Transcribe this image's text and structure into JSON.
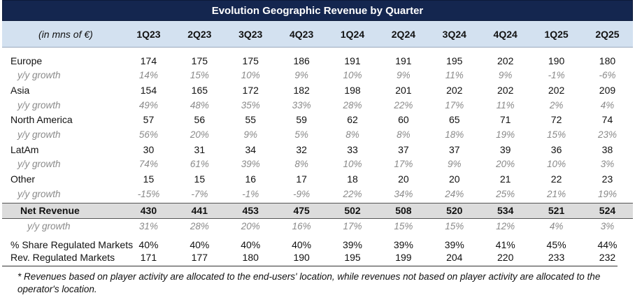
{
  "title": "Evolution Geographic Revenue by Quarter",
  "unit_label": "(in mns of €)",
  "quarters": [
    "1Q23",
    "2Q23",
    "3Q23",
    "4Q23",
    "1Q24",
    "2Q24",
    "3Q24",
    "4Q24",
    "1Q25",
    "2Q25"
  ],
  "regions": [
    {
      "name": "Europe",
      "values": [
        "174",
        "175",
        "175",
        "186",
        "191",
        "191",
        "195",
        "202",
        "190",
        "180"
      ],
      "growth_label": "y/y growth",
      "growth": [
        "14%",
        "15%",
        "10%",
        "9%",
        "10%",
        "9%",
        "11%",
        "9%",
        "-1%",
        "-6%"
      ]
    },
    {
      "name": "Asia",
      "values": [
        "154",
        "165",
        "172",
        "182",
        "198",
        "201",
        "202",
        "202",
        "202",
        "209"
      ],
      "growth_label": "y/y growth",
      "growth": [
        "49%",
        "48%",
        "35%",
        "33%",
        "28%",
        "22%",
        "17%",
        "11%",
        "2%",
        "4%"
      ]
    },
    {
      "name": "North America",
      "values": [
        "57",
        "56",
        "55",
        "59",
        "62",
        "60",
        "65",
        "71",
        "72",
        "74"
      ],
      "growth_label": "y/y growth",
      "growth": [
        "56%",
        "20%",
        "9%",
        "5%",
        "8%",
        "8%",
        "18%",
        "19%",
        "15%",
        "23%"
      ]
    },
    {
      "name": "LatAm",
      "values": [
        "30",
        "31",
        "34",
        "32",
        "33",
        "37",
        "37",
        "39",
        "36",
        "38"
      ],
      "growth_label": "y/y growth",
      "growth": [
        "74%",
        "61%",
        "39%",
        "8%",
        "10%",
        "17%",
        "9%",
        "20%",
        "10%",
        "3%"
      ]
    },
    {
      "name": "Other",
      "values": [
        "15",
        "15",
        "16",
        "17",
        "18",
        "20",
        "20",
        "21",
        "22",
        "23"
      ],
      "growth_label": "y/y growth",
      "growth": [
        "-15%",
        "-7%",
        "-1%",
        "-9%",
        "22%",
        "34%",
        "24%",
        "25%",
        "21%",
        "19%"
      ]
    }
  ],
  "net_revenue": {
    "name": "Net Revenue",
    "values": [
      "430",
      "441",
      "453",
      "475",
      "502",
      "508",
      "520",
      "534",
      "521",
      "524"
    ],
    "growth_label": "y/y growth",
    "growth": [
      "31%",
      "28%",
      "20%",
      "16%",
      "17%",
      "15%",
      "15%",
      "12%",
      "4%",
      "3%"
    ]
  },
  "share_regulated": {
    "name": "% Share Regulated Markets",
    "values": [
      "40%",
      "40%",
      "40%",
      "40%",
      "39%",
      "39%",
      "39%",
      "41%",
      "45%",
      "44%"
    ]
  },
  "rev_regulated": {
    "name": "Rev. Regulated Markets",
    "values": [
      "171",
      "177",
      "180",
      "190",
      "195",
      "199",
      "204",
      "220",
      "233",
      "232"
    ]
  },
  "footnote": "* Revenues based on player activity are allocated to the end-users' location, while revenues not based on player activity are allocated to the operator's location.",
  "colors": {
    "title_bg": "#14264f",
    "header_bg": "#d3e1f0",
    "net_bg": "#dcdcdc",
    "growth_text": "#8a8a8a"
  }
}
